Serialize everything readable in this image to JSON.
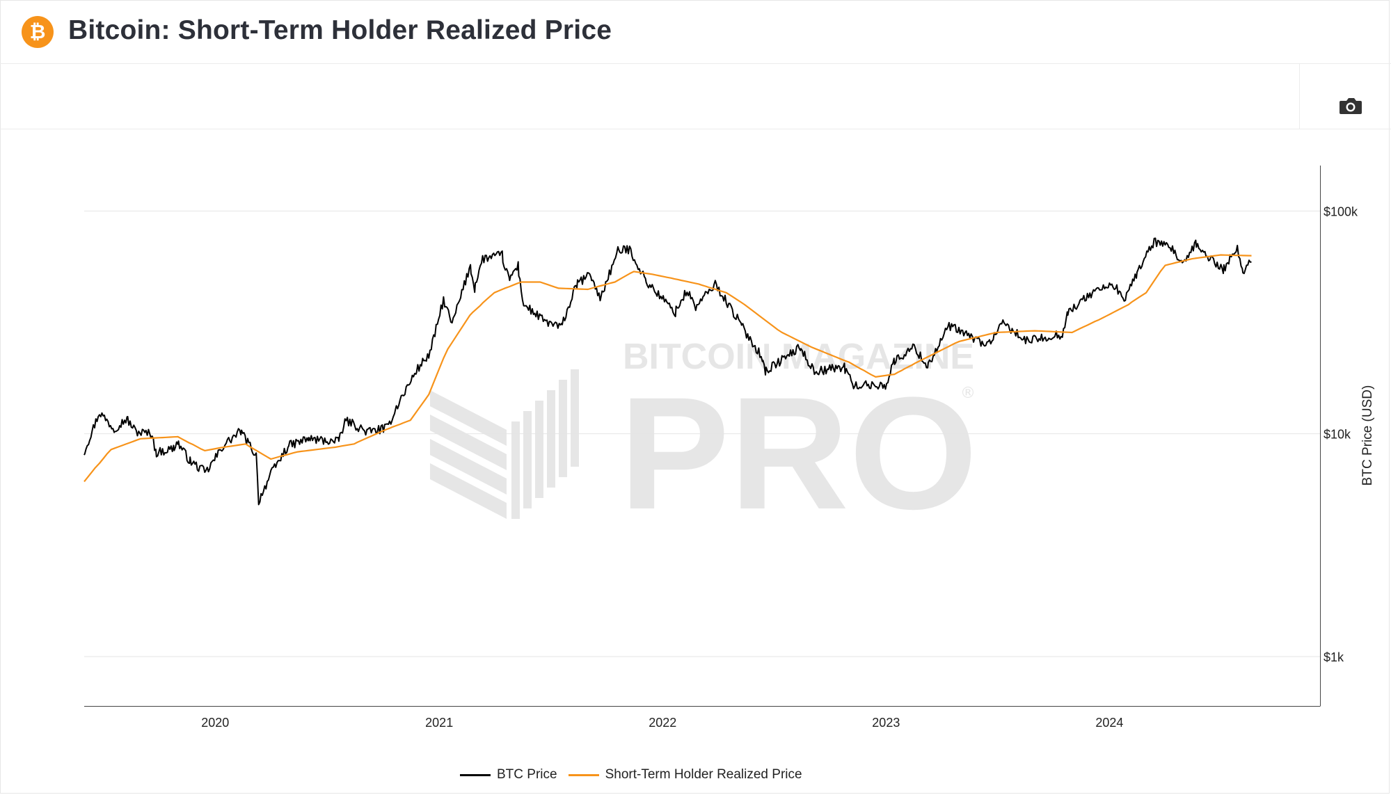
{
  "header": {
    "title": "Bitcoin: Short-Term Holder Realized Price",
    "logo_icon": "bitcoin-logo-icon",
    "logo_glyph": "₿",
    "logo_color": "#f7931a"
  },
  "toolbar": {
    "camera_icon": "camera-icon"
  },
  "watermark": {
    "line1": "BITCOIN MAGAZINE",
    "line2": "PRO",
    "mark": "®",
    "color": "#e6e6e6"
  },
  "chart_data": {
    "type": "line",
    "title": "Bitcoin: Short-Term Holder Realized Price",
    "xlabel": "",
    "ylabel": "BTC Price (USD)",
    "y_scale": "log",
    "y_axis_position": "right",
    "ylim": [
      600,
      160000
    ],
    "xlim": [
      "2019-06-01",
      "2024-12-10"
    ],
    "x_ticks": [
      "2020",
      "2021",
      "2022",
      "2023",
      "2024"
    ],
    "x_tick_dates": [
      "2020-01-01",
      "2021-01-01",
      "2022-01-01",
      "2023-01-01",
      "2024-01-01"
    ],
    "y_ticks": [
      1000,
      10000,
      100000
    ],
    "y_tick_labels": [
      "$1k",
      "$10k",
      "$100k"
    ],
    "grid": true,
    "legend_position": "bottom-center",
    "colors": {
      "btc": "#000000",
      "sth": "#f7931a"
    },
    "series": [
      {
        "name": "BTC Price",
        "color": "#000000",
        "points": [
          [
            "2019-06-01",
            8200
          ],
          [
            "2019-06-26",
            12500
          ],
          [
            "2019-07-20",
            10500
          ],
          [
            "2019-08-10",
            11700
          ],
          [
            "2019-08-25",
            10200
          ],
          [
            "2019-09-20",
            10000
          ],
          [
            "2019-09-26",
            8200
          ],
          [
            "2019-10-25",
            8600
          ],
          [
            "2019-11-01",
            9200
          ],
          [
            "2019-11-20",
            7600
          ],
          [
            "2019-12-17",
            6700
          ],
          [
            "2020-01-14",
            8800
          ],
          [
            "2020-02-12",
            10300
          ],
          [
            "2020-03-08",
            8000
          ],
          [
            "2020-03-12",
            5000
          ],
          [
            "2020-04-01",
            6600
          ],
          [
            "2020-04-29",
            8800
          ],
          [
            "2020-06-01",
            9500
          ],
          [
            "2020-07-20",
            9200
          ],
          [
            "2020-08-02",
            11500
          ],
          [
            "2020-09-05",
            10200
          ],
          [
            "2020-10-08",
            10600
          ],
          [
            "2020-10-22",
            12900
          ],
          [
            "2020-11-24",
            19000
          ],
          [
            "2020-12-17",
            23000
          ],
          [
            "2021-01-08",
            40000
          ],
          [
            "2021-01-22",
            31000
          ],
          [
            "2021-02-21",
            57000
          ],
          [
            "2021-02-28",
            45000
          ],
          [
            "2021-03-13",
            61000
          ],
          [
            "2021-04-14",
            63500
          ],
          [
            "2021-04-25",
            49000
          ],
          [
            "2021-05-10",
            57000
          ],
          [
            "2021-05-19",
            38000
          ],
          [
            "2021-06-22",
            32000
          ],
          [
            "2021-07-20",
            30000
          ],
          [
            "2021-08-14",
            47000
          ],
          [
            "2021-09-06",
            52000
          ],
          [
            "2021-09-21",
            40000
          ],
          [
            "2021-10-20",
            66000
          ],
          [
            "2021-11-08",
            67500
          ],
          [
            "2021-11-26",
            54000
          ],
          [
            "2021-12-04",
            49000
          ],
          [
            "2022-01-22",
            35000
          ],
          [
            "2022-02-10",
            44000
          ],
          [
            "2022-02-24",
            37000
          ],
          [
            "2022-03-28",
            47000
          ],
          [
            "2022-05-09",
            31000
          ],
          [
            "2022-06-13",
            22000
          ],
          [
            "2022-06-18",
            19000
          ],
          [
            "2022-08-14",
            24500
          ],
          [
            "2022-09-06",
            19000
          ],
          [
            "2022-10-25",
            20000
          ],
          [
            "2022-11-09",
            16500
          ],
          [
            "2022-12-31",
            16500
          ],
          [
            "2023-01-14",
            21000
          ],
          [
            "2023-02-16",
            24500
          ],
          [
            "2023-03-10",
            20000
          ],
          [
            "2023-04-14",
            30500
          ],
          [
            "2023-06-15",
            25000
          ],
          [
            "2023-07-13",
            31500
          ],
          [
            "2023-08-17",
            26000
          ],
          [
            "2023-10-16",
            28000
          ],
          [
            "2023-10-24",
            34500
          ],
          [
            "2023-12-08",
            44000
          ],
          [
            "2024-01-11",
            46500
          ],
          [
            "2024-01-23",
            39000
          ],
          [
            "2024-02-14",
            52000
          ],
          [
            "2024-03-14",
            73000
          ],
          [
            "2024-04-13",
            67000
          ],
          [
            "2024-05-01",
            57000
          ],
          [
            "2024-05-21",
            71000
          ],
          [
            "2024-07-05",
            54000
          ],
          [
            "2024-07-28",
            69000
          ],
          [
            "2024-08-05",
            53000
          ],
          [
            "2024-08-20",
            59000
          ]
        ]
      },
      {
        "name": "Short-Term Holder Realized Price",
        "color": "#f7931a",
        "points": [
          [
            "2019-06-01",
            6100
          ],
          [
            "2019-07-15",
            8500
          ],
          [
            "2019-09-01",
            9500
          ],
          [
            "2019-11-01",
            9700
          ],
          [
            "2019-12-15",
            8400
          ],
          [
            "2020-01-15",
            8700
          ],
          [
            "2020-02-20",
            9000
          ],
          [
            "2020-04-01",
            7700
          ],
          [
            "2020-05-15",
            8300
          ],
          [
            "2020-07-15",
            8700
          ],
          [
            "2020-08-15",
            9000
          ],
          [
            "2020-10-01",
            10300
          ],
          [
            "2020-11-15",
            11500
          ],
          [
            "2020-12-15",
            15000
          ],
          [
            "2021-01-15",
            24000
          ],
          [
            "2021-02-20",
            34000
          ],
          [
            "2021-04-01",
            43000
          ],
          [
            "2021-05-15",
            48000
          ],
          [
            "2021-06-15",
            48000
          ],
          [
            "2021-07-15",
            45000
          ],
          [
            "2021-09-01",
            44500
          ],
          [
            "2021-10-15",
            48000
          ],
          [
            "2021-11-15",
            53500
          ],
          [
            "2021-12-15",
            52000
          ],
          [
            "2022-01-15",
            50000
          ],
          [
            "2022-03-01",
            47000
          ],
          [
            "2022-04-15",
            43000
          ],
          [
            "2022-05-15",
            38000
          ],
          [
            "2022-07-15",
            28500
          ],
          [
            "2022-09-01",
            24500
          ],
          [
            "2022-11-01",
            21000
          ],
          [
            "2022-12-15",
            18000
          ],
          [
            "2023-01-15",
            18500
          ],
          [
            "2023-03-01",
            21500
          ],
          [
            "2023-05-01",
            26000
          ],
          [
            "2023-07-01",
            28500
          ],
          [
            "2023-09-01",
            29000
          ],
          [
            "2023-11-01",
            28500
          ],
          [
            "2023-12-15",
            32500
          ],
          [
            "2024-02-01",
            38000
          ],
          [
            "2024-03-01",
            43000
          ],
          [
            "2024-04-01",
            57000
          ],
          [
            "2024-05-15",
            61000
          ],
          [
            "2024-07-01",
            63500
          ],
          [
            "2024-08-20",
            63000
          ]
        ]
      }
    ]
  }
}
